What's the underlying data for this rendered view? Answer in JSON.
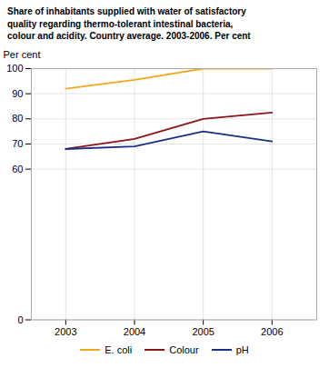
{
  "chart_data": {
    "type": "line",
    "title": "Share of inhabitants supplied with water of satisfactory\nquality regarding thermo-tolerant intestinal bacteria,\ncolour and acidity. Country average. 2003-2006. Per cent",
    "ylabel": "Per cent",
    "x": [
      2003,
      2004,
      2005,
      2006
    ],
    "series": [
      {
        "name": "E. coli",
        "color": "#F4A620",
        "values": [
          92,
          95.5,
          100,
          100
        ]
      },
      {
        "name": "Colour",
        "color": "#8B1515",
        "values": [
          68,
          72,
          80,
          82.5
        ]
      },
      {
        "name": "pH",
        "color": "#1A2F8A",
        "values": [
          68,
          69,
          75,
          71
        ]
      }
    ],
    "xlim": [
      2002.5,
      2006.65
    ],
    "xticks": [
      2003,
      2004,
      2005,
      2006
    ],
    "ylim": [
      0,
      100
    ],
    "yticks": [
      0,
      60,
      70,
      80,
      90,
      100
    ],
    "grid": true,
    "legend": "bottom"
  }
}
